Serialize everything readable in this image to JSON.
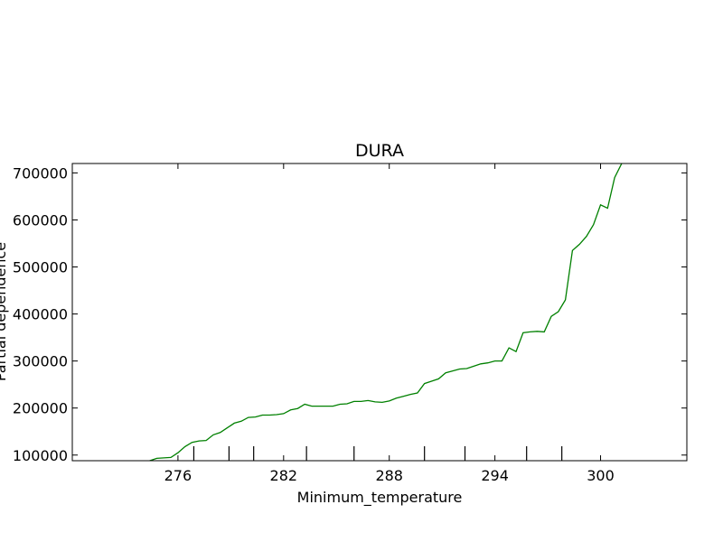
{
  "chart_data": {
    "type": "line",
    "title": "DURA",
    "xlabel": "Minimum_temperature",
    "ylabel": "Partial dependence",
    "xlim": [
      270.0,
      304.9
    ],
    "ylim": [
      88000,
      720000
    ],
    "x_ticks": [
      276,
      282,
      288,
      294,
      300
    ],
    "y_ticks": [
      100000,
      200000,
      300000,
      400000,
      500000,
      600000,
      700000
    ],
    "rug_x": [
      276.9,
      278.9,
      280.3,
      283.3,
      286.0,
      290.0,
      292.3,
      295.8,
      297.8
    ],
    "grid": false,
    "color": "#008000",
    "series": [
      {
        "x": [
          274.4,
          274.8,
          275.2,
          275.6,
          276.0,
          276.4,
          276.8,
          277.2,
          277.6,
          278.0,
          278.4,
          278.8,
          279.2,
          279.6,
          280.0,
          280.4,
          280.8,
          281.2,
          281.6,
          282.0,
          282.4,
          282.8,
          283.2,
          283.6,
          284.0,
          284.4,
          284.8,
          285.2,
          285.6,
          286.0,
          286.4,
          286.8,
          287.2,
          287.6,
          288.0,
          288.4,
          288.8,
          289.2,
          289.6,
          290.0,
          290.4,
          290.8,
          291.2,
          291.6,
          292.0,
          292.4,
          292.8,
          293.2,
          293.6,
          294.0,
          294.4,
          294.8,
          295.2,
          295.6,
          296.0,
          296.4,
          296.8,
          297.2,
          297.6,
          298.0,
          298.4,
          298.8,
          299.2,
          299.6,
          300.0,
          300.4,
          300.8,
          301.2
        ],
        "y": [
          88000,
          93000,
          94000,
          95000,
          105000,
          118000,
          127000,
          130000,
          131000,
          143000,
          148000,
          158000,
          168000,
          172000,
          180000,
          181000,
          185000,
          185000,
          186000,
          188000,
          196000,
          199000,
          208000,
          204000,
          204000,
          204000,
          204000,
          208000,
          209000,
          214000,
          214000,
          216000,
          213000,
          212000,
          215000,
          221000,
          225000,
          229000,
          232000,
          252000,
          257000,
          262000,
          275000,
          279000,
          283000,
          284000,
          289000,
          294000,
          296000,
          300000,
          300000,
          328000,
          320000,
          360000,
          362000,
          363000,
          362000,
          395000,
          405000,
          430000,
          535000,
          548000,
          565000,
          590000,
          632000,
          625000,
          690000,
          720000
        ]
      }
    ]
  }
}
